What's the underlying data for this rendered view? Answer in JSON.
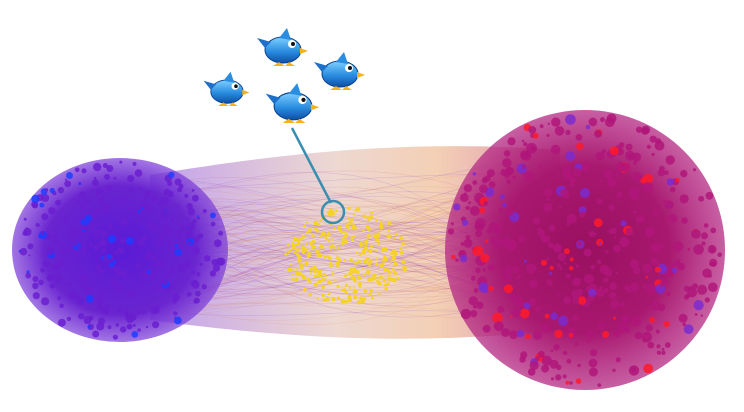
{
  "diagram": {
    "clusters": [
      {
        "name": "left-community",
        "main_color": "#6a1fd0",
        "accent_color": "#1f3cff"
      },
      {
        "name": "center-bot-cluster",
        "main_color": "#f5d327"
      },
      {
        "name": "right-community",
        "main_color": "#b0167a",
        "accent_color": "#ff1a2a"
      }
    ],
    "edge_colors": [
      "#7a2bd6",
      "#c0557a",
      "#e08a50"
    ],
    "callout": {
      "ring_color": "#3a8fb0",
      "line_color": "#3a8fb0"
    },
    "bird_icons": [
      {
        "icon": "blue-bird-icon"
      },
      {
        "icon": "blue-bird-icon"
      },
      {
        "icon": "blue-bird-icon"
      },
      {
        "icon": "blue-bird-icon"
      }
    ]
  }
}
